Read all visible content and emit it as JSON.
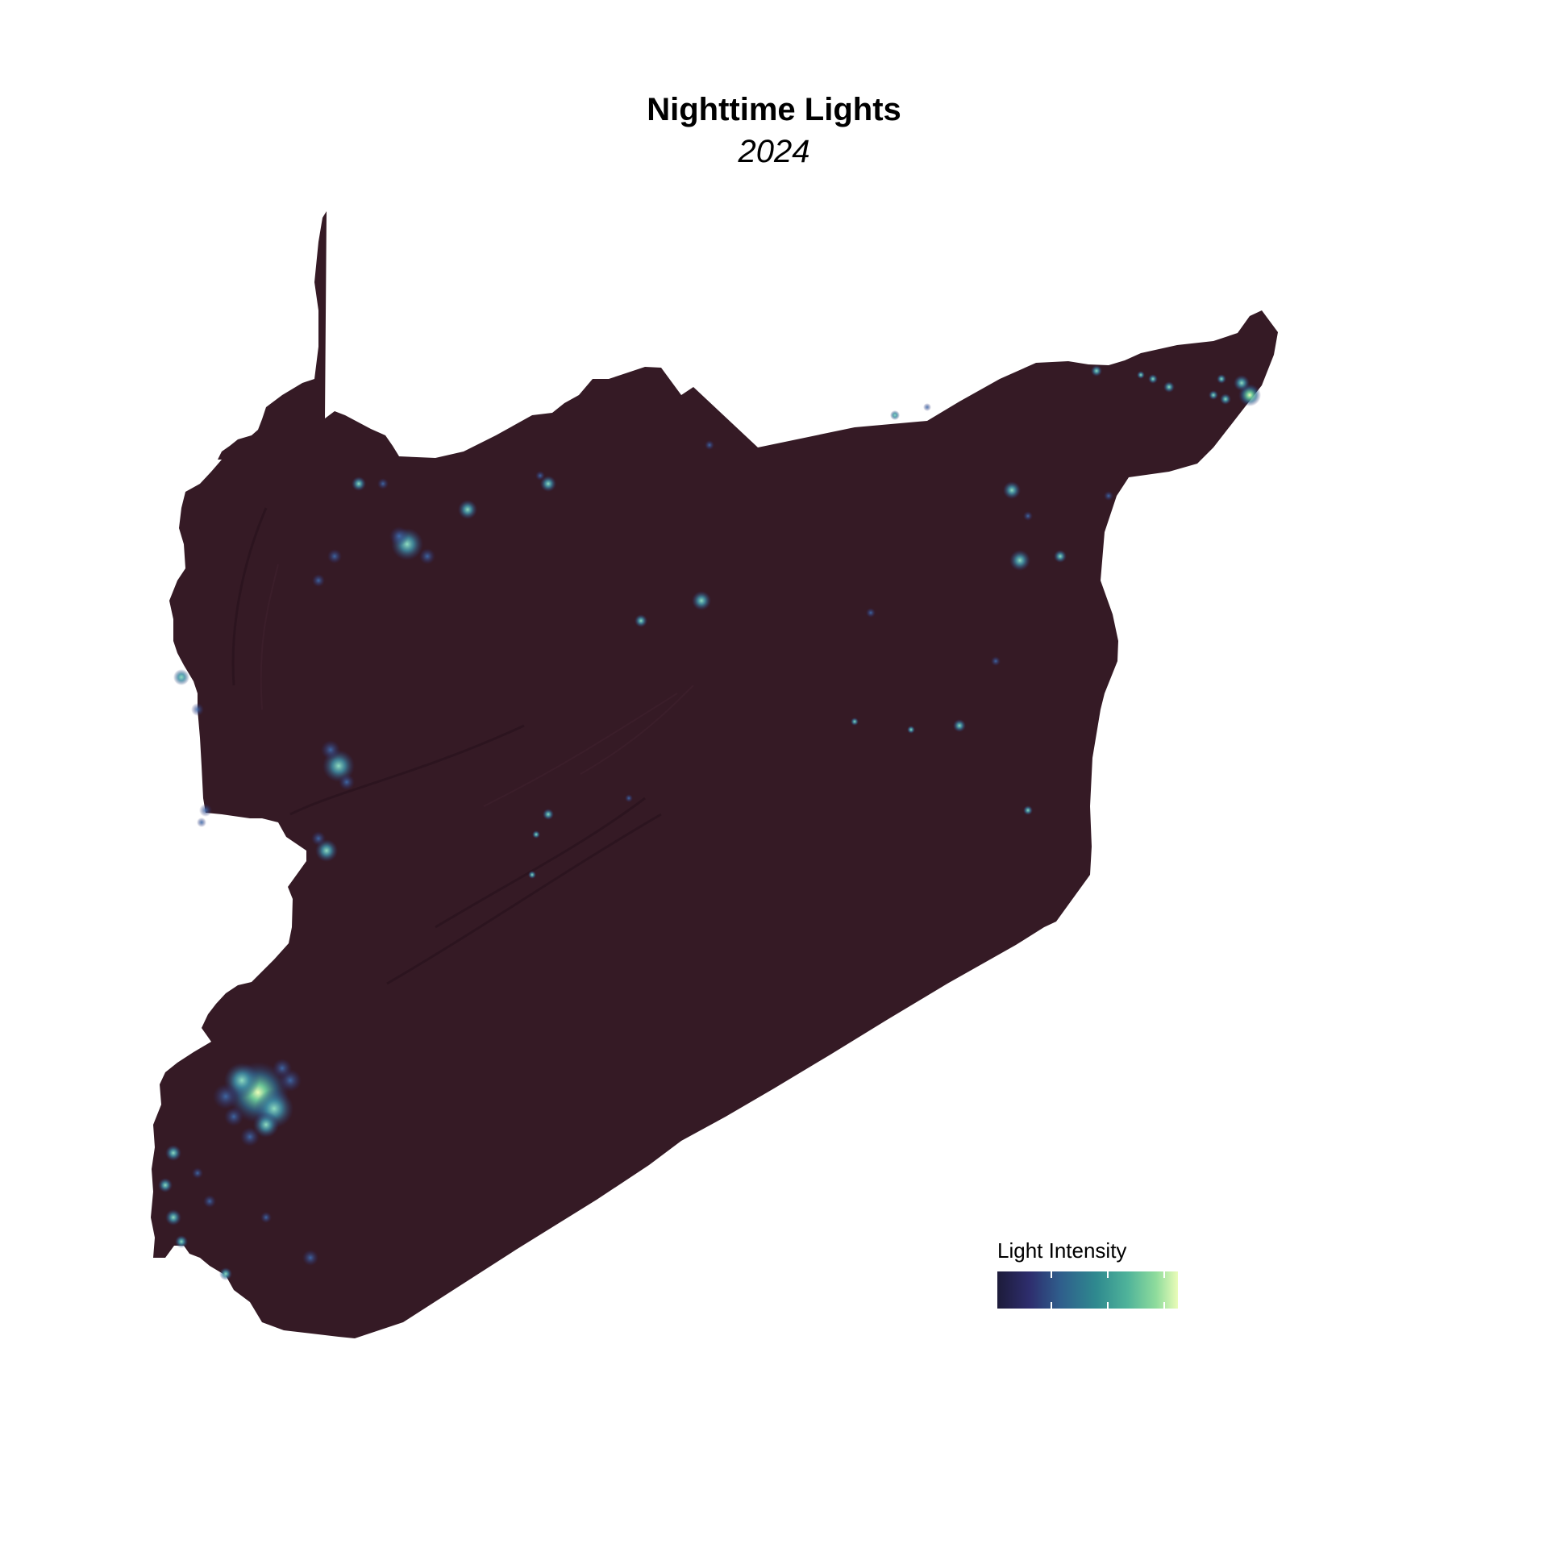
{
  "map": {
    "title": "Nighttime Lights",
    "subtitle": "2024",
    "land_color": "#351a25",
    "background_color": "#ffffff"
  },
  "legend": {
    "title": "Light Intensity",
    "colormap": [
      "#1d1b3a",
      "#2e2e6e",
      "#2f5e8c",
      "#2f8a8f",
      "#4fb39a",
      "#8fdc9c",
      "#eafcb8"
    ],
    "tick_count": 3
  }
}
